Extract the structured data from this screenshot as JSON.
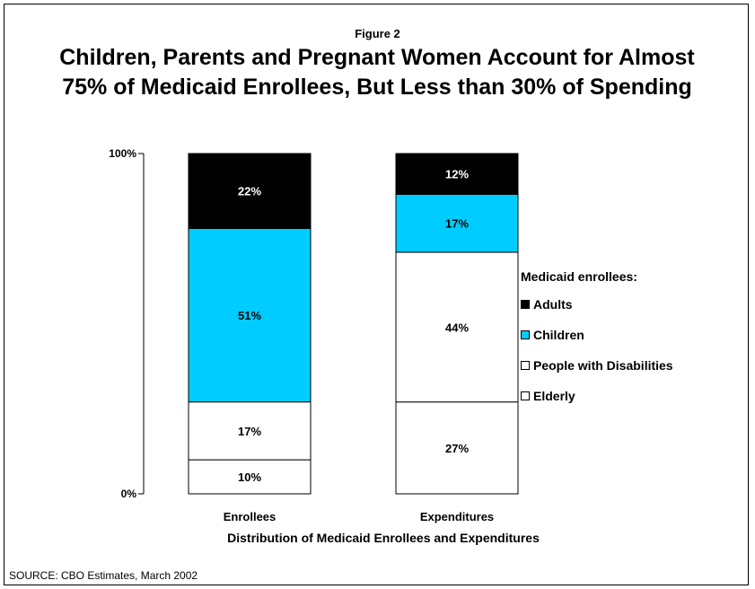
{
  "figure_label": "Figure 2",
  "chart_data": {
    "type": "bar",
    "stacked": true,
    "title": "Children, Parents and Pregnant Women Account for Almost 75% of Medicaid Enrollees, But Less than 30% of Spending",
    "xlabel": "Distribution of Medicaid Enrollees and Expenditures",
    "ylabel": "",
    "ylim": [
      0,
      100
    ],
    "y_ticks": [
      "0%",
      "100%"
    ],
    "categories": [
      "Enrollees",
      "Expenditures"
    ],
    "series": [
      {
        "name": "Elderly",
        "color": "#ffffff",
        "values": [
          10,
          27
        ],
        "labels": [
          "10%",
          "27%"
        ]
      },
      {
        "name": "People with Disabilities",
        "color": "#ffffff",
        "values": [
          17,
          44
        ],
        "labels": [
          "17%",
          "44%"
        ]
      },
      {
        "name": "Children",
        "color": "#00ccff",
        "values": [
          51,
          17
        ],
        "labels": [
          "51%",
          "17%"
        ]
      },
      {
        "name": "Adults",
        "color": "#000000",
        "values": [
          22,
          12
        ],
        "labels": [
          "22%",
          "12%"
        ]
      }
    ],
    "legend": {
      "title": "Medicaid enrollees:",
      "position": "right",
      "items": [
        {
          "name": "Adults",
          "color": "#000000"
        },
        {
          "name": "Children",
          "color": "#00ccff"
        },
        {
          "name": "People with Disabilities",
          "color": "#ffffff"
        },
        {
          "name": "Elderly",
          "color": "#ffffff"
        }
      ]
    },
    "grid": false
  },
  "source": "SOURCE: CBO Estimates, March 2002"
}
